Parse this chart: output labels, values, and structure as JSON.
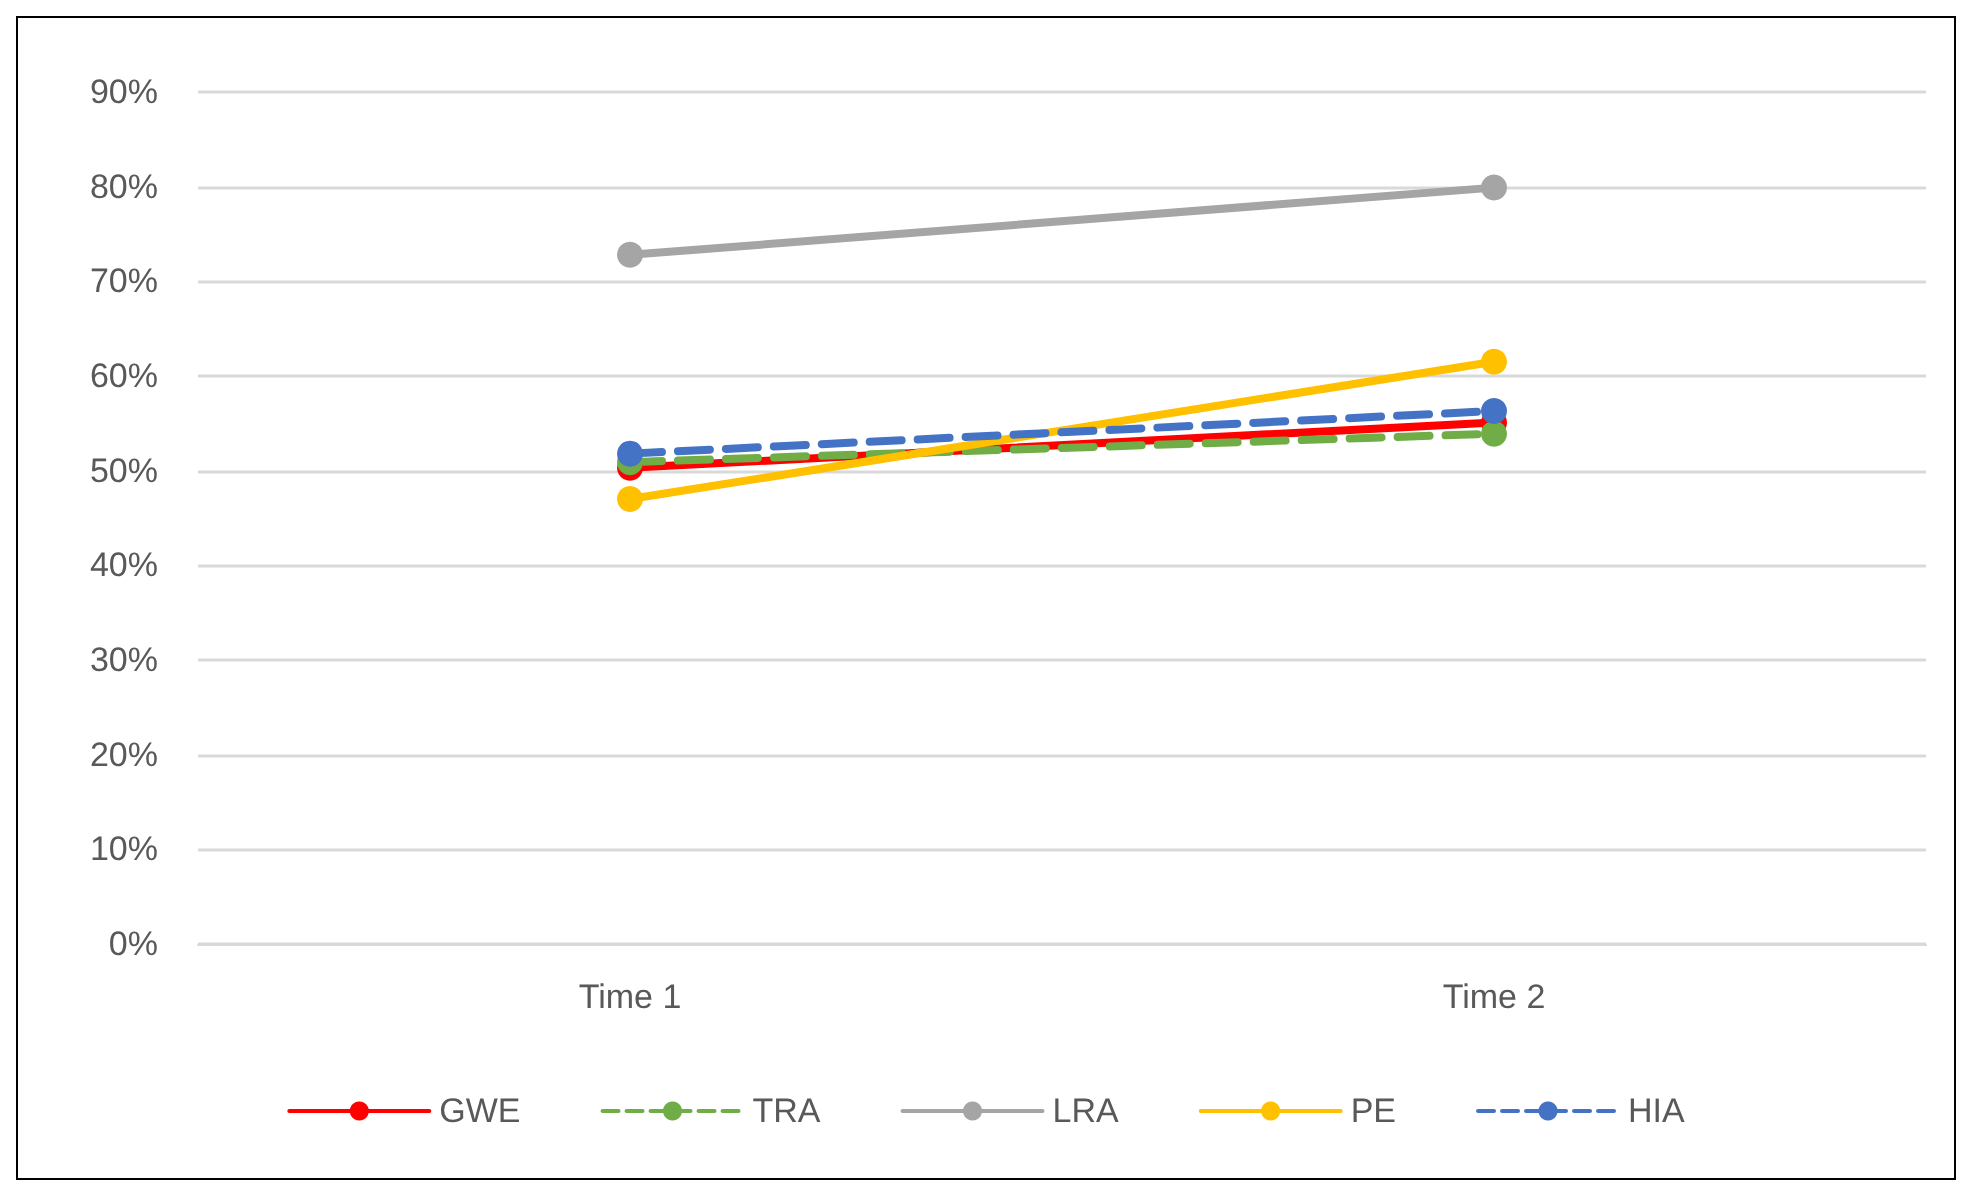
{
  "chart_data": {
    "type": "line",
    "categories": [
      "Time 1",
      "Time 2"
    ],
    "series": [
      {
        "name": "GWE",
        "color": "#ff0000",
        "values": [
          50.3,
          55.1
        ],
        "line_style": "solid"
      },
      {
        "name": "TRA",
        "color": "#70ad47",
        "values": [
          50.9,
          53.9
        ],
        "line_style": "dashed"
      },
      {
        "name": "LRA",
        "color": "#a5a5a5",
        "values": [
          72.8,
          79.9
        ],
        "line_style": "solid"
      },
      {
        "name": "PE",
        "color": "#ffc000",
        "values": [
          47,
          61.5
        ],
        "line_style": "solid"
      },
      {
        "name": "HIA",
        "color": "#4472c4",
        "values": [
          51.8,
          56.3
        ],
        "line_style": "dashed"
      }
    ],
    "ylim": [
      0,
      90
    ],
    "yticks": [
      {
        "value": 0,
        "label": "0%"
      },
      {
        "value": 10,
        "label": "10%"
      },
      {
        "value": 20,
        "label": "20%"
      },
      {
        "value": 30,
        "label": "30%"
      },
      {
        "value": 40,
        "label": "40%"
      },
      {
        "value": 50,
        "label": "50%"
      },
      {
        "value": 60,
        "label": "60%"
      },
      {
        "value": 70,
        "label": "70%"
      },
      {
        "value": 80,
        "label": "80%"
      },
      {
        "value": 90,
        "label": "90%"
      }
    ],
    "grid": "y",
    "legend": "bottom",
    "marker": "circle"
  }
}
